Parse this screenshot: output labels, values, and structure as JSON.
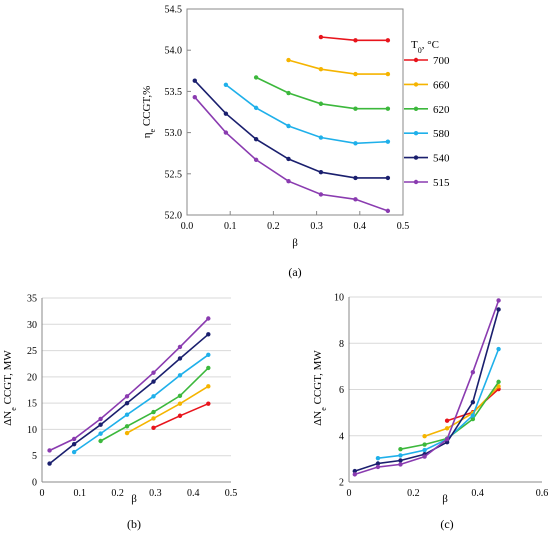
{
  "chart_data": [
    {
      "type": "line",
      "caption": "(a)",
      "xlabel": "β",
      "ylabel": "ηe CCGT,%",
      "ylabel_main": "η",
      "ylabel_sub": "e",
      "ylabel_rest": " CCGT,%",
      "xlim": [
        0,
        0.5
      ],
      "ylim": [
        52.0,
        54.5
      ],
      "xticks": [
        "0.0",
        "0.1",
        "0.2",
        "0.3",
        "0.4",
        "0.5"
      ],
      "yticks": [
        "52.0",
        "52.5",
        "53.0",
        "53.5",
        "54.0",
        "54.5"
      ],
      "legend_title": "T0, °C",
      "legend_title_main": "T",
      "legend_title_sub": "0",
      "legend_title_rest": ", °C",
      "legend_position": "right",
      "series": [
        {
          "name": "700",
          "color": "#e8141c",
          "x": [
            0.31,
            0.39,
            0.465
          ],
          "y": [
            54.16,
            54.12,
            54.12
          ]
        },
        {
          "name": "660",
          "color": "#f5b400",
          "x": [
            0.235,
            0.31,
            0.39,
            0.465
          ],
          "y": [
            53.88,
            53.77,
            53.71,
            53.71
          ]
        },
        {
          "name": "620",
          "color": "#3cb83c",
          "x": [
            0.16,
            0.235,
            0.31,
            0.39,
            0.465
          ],
          "y": [
            53.67,
            53.48,
            53.35,
            53.29,
            53.29
          ]
        },
        {
          "name": "580",
          "color": "#1fb0ea",
          "x": [
            0.09,
            0.16,
            0.235,
            0.31,
            0.39,
            0.465
          ],
          "y": [
            53.58,
            53.3,
            53.08,
            52.94,
            52.87,
            52.89
          ]
        },
        {
          "name": "540",
          "color": "#1a1f6e",
          "x": [
            0.018,
            0.09,
            0.16,
            0.235,
            0.31,
            0.39,
            0.465
          ],
          "y": [
            53.63,
            53.23,
            52.92,
            52.68,
            52.52,
            52.45,
            52.45
          ]
        },
        {
          "name": "515",
          "color": "#8a3bb0",
          "x": [
            0.018,
            0.09,
            0.16,
            0.235,
            0.31,
            0.39,
            0.465
          ],
          "y": [
            53.43,
            53.0,
            52.67,
            52.41,
            52.25,
            52.19,
            52.05
          ]
        }
      ]
    },
    {
      "type": "line",
      "caption": "(b)",
      "xlabel": "β",
      "ylabel": "ΔNe CCGT, MW",
      "ylabel_main": "ΔN",
      "ylabel_sub": "e",
      "ylabel_rest": " CCGT, MW",
      "xlim": [
        0,
        0.5
      ],
      "ylim": [
        0,
        35
      ],
      "xticks": [
        "0",
        "0.1",
        "0.2",
        "0.3",
        "0.4",
        "0.5"
      ],
      "yticks": [
        "0",
        "5",
        "10",
        "15",
        "20",
        "25",
        "30",
        "35"
      ],
      "series": [
        {
          "name": "700",
          "color": "#e8141c",
          "x": [
            0.295,
            0.365,
            0.44
          ],
          "y": [
            10.3,
            12.6,
            14.9
          ]
        },
        {
          "name": "660",
          "color": "#f5b400",
          "x": [
            0.225,
            0.295,
            0.365,
            0.44
          ],
          "y": [
            9.3,
            12.1,
            14.9,
            18.2
          ]
        },
        {
          "name": "620",
          "color": "#3cb83c",
          "x": [
            0.155,
            0.225,
            0.295,
            0.365,
            0.44
          ],
          "y": [
            7.8,
            10.6,
            13.3,
            16.4,
            21.7
          ]
        },
        {
          "name": "580",
          "color": "#1fb0ea",
          "x": [
            0.085,
            0.155,
            0.225,
            0.295,
            0.365,
            0.44
          ],
          "y": [
            5.7,
            9.2,
            12.8,
            16.3,
            20.3,
            24.2
          ]
        },
        {
          "name": "540",
          "color": "#1a1f6e",
          "x": [
            0.02,
            0.085,
            0.155,
            0.225,
            0.295,
            0.365,
            0.44
          ],
          "y": [
            3.5,
            7.2,
            10.9,
            15.0,
            19.1,
            23.5,
            28.1
          ]
        },
        {
          "name": "515",
          "color": "#8a3bb0",
          "x": [
            0.02,
            0.085,
            0.155,
            0.225,
            0.295,
            0.365,
            0.44
          ],
          "y": [
            6.0,
            8.2,
            12.0,
            16.3,
            20.8,
            25.7,
            31.1
          ]
        }
      ]
    },
    {
      "type": "line",
      "caption": "(c)",
      "xlabel": "β",
      "ylabel": "ΔNe CCGT, MW",
      "ylabel_main": "ΔN",
      "ylabel_sub": "e",
      "ylabel_rest": " CCGT, MW",
      "xlim": [
        0,
        0.6
      ],
      "ylim": [
        2,
        10
      ],
      "xticks": [
        "0",
        "0.2",
        "0.4",
        "0.6"
      ],
      "yticks": [
        "2",
        "4",
        "6",
        "8",
        "10"
      ],
      "series": [
        {
          "name": "700",
          "color": "#e8141c",
          "x": [
            0.305,
            0.385,
            0.465
          ],
          "y": [
            4.65,
            5.02,
            6.02
          ]
        },
        {
          "name": "660",
          "color": "#f5b400",
          "x": [
            0.235,
            0.305,
            0.385,
            0.465
          ],
          "y": [
            3.98,
            4.32,
            4.98,
            6.14
          ]
        },
        {
          "name": "620",
          "color": "#3cb83c",
          "x": [
            0.16,
            0.235,
            0.305,
            0.385,
            0.465
          ],
          "y": [
            3.42,
            3.62,
            3.88,
            4.72,
            6.33
          ]
        },
        {
          "name": "580",
          "color": "#1fb0ea",
          "x": [
            0.09,
            0.16,
            0.235,
            0.305,
            0.385,
            0.465
          ],
          "y": [
            3.03,
            3.15,
            3.38,
            3.85,
            4.88,
            7.75
          ]
        },
        {
          "name": "540",
          "color": "#1a1f6e",
          "x": [
            0.018,
            0.09,
            0.16,
            0.235,
            0.305,
            0.385,
            0.465
          ],
          "y": [
            2.47,
            2.8,
            2.93,
            3.2,
            3.72,
            5.45,
            9.46
          ]
        },
        {
          "name": "515",
          "color": "#8a3bb0",
          "x": [
            0.018,
            0.09,
            0.16,
            0.235,
            0.305,
            0.385,
            0.465
          ],
          "y": [
            2.33,
            2.65,
            2.76,
            3.1,
            3.85,
            6.75,
            9.85
          ]
        }
      ]
    }
  ]
}
